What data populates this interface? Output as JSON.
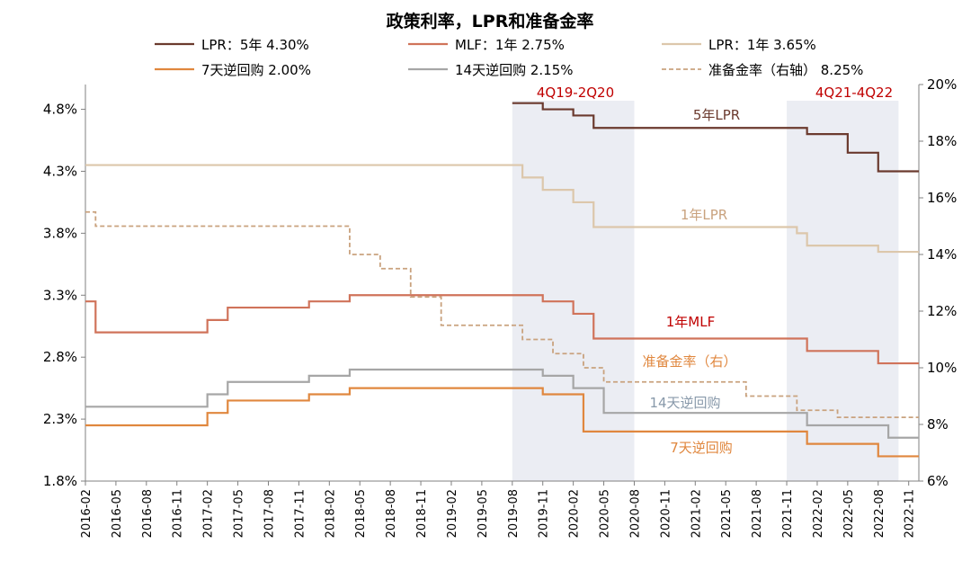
{
  "chart_data": {
    "type": "line",
    "title": "政策利率，LPR和准备金率",
    "left_axis": {
      "ylim": [
        1.8,
        5.0
      ],
      "ticks": [
        "4.8%",
        "4.3%",
        "3.8%",
        "3.3%",
        "2.8%",
        "2.3%",
        "1.8%"
      ],
      "tick_values": [
        4.8,
        4.3,
        3.8,
        3.3,
        2.8,
        2.3,
        1.8
      ]
    },
    "right_axis": {
      "ylim": [
        6,
        20
      ],
      "ticks": [
        "20%",
        "18%",
        "16%",
        "14%",
        "12%",
        "10%",
        "8%",
        "6%"
      ],
      "tick_values": [
        20,
        18,
        16,
        14,
        12,
        10,
        8,
        6
      ]
    },
    "x_tick_labels": [
      "2016-02",
      "2016-05",
      "2016-08",
      "2016-11",
      "2017-02",
      "2017-05",
      "2017-08",
      "2017-11",
      "2018-02",
      "2018-05",
      "2018-08",
      "2018-11",
      "2019-02",
      "2019-05",
      "2019-08",
      "2019-11",
      "2020-02",
      "2020-05",
      "2020-08",
      "2020-11",
      "2021-02",
      "2021-05",
      "2021-08",
      "2021-11",
      "2022-02",
      "2022-05",
      "2022-08",
      "2022-11"
    ],
    "grid": false,
    "legend_position": "top",
    "shaded_periods": [
      {
        "label": "4Q19-2Q20",
        "from": "2019-08",
        "to": "2020-08"
      },
      {
        "label": "4Q21-4Q22",
        "from": "2021-11",
        "to": "2022-10"
      }
    ],
    "series": [
      {
        "key": "lpr5y",
        "legend_name": "LPR：5年",
        "legend_value": "4.30%",
        "inline_label": "5年LPR",
        "color": "#6b3a2e",
        "axis": "left",
        "dashed": false,
        "points": [
          [
            "2019-08",
            4.85
          ],
          [
            "2019-11",
            4.8
          ],
          [
            "2020-02",
            4.75
          ],
          [
            "2020-04",
            4.65
          ],
          [
            "2021-12",
            4.65
          ],
          [
            "2022-01",
            4.6
          ],
          [
            "2022-05",
            4.45
          ],
          [
            "2022-08",
            4.3
          ],
          [
            "2022-12",
            4.3
          ]
        ]
      },
      {
        "key": "lpr1y",
        "legend_name": "LPR：1年",
        "legend_value": "3.65%",
        "inline_label": "1年LPR",
        "color": "#dcc7ab",
        "axis": "left",
        "dashed": false,
        "points": [
          [
            "2016-02",
            4.35
          ],
          [
            "2019-08",
            4.35
          ],
          [
            "2019-09",
            4.25
          ],
          [
            "2019-11",
            4.15
          ],
          [
            "2020-02",
            4.05
          ],
          [
            "2020-04",
            3.85
          ],
          [
            "2021-12",
            3.8
          ],
          [
            "2022-01",
            3.7
          ],
          [
            "2022-08",
            3.65
          ],
          [
            "2022-12",
            3.65
          ]
        ]
      },
      {
        "key": "mlf",
        "legend_name": "MLF：1年",
        "legend_value": "2.75%",
        "inline_label": "1年MLF",
        "color": "#d0735a",
        "axis": "left",
        "dashed": false,
        "points": [
          [
            "2016-02",
            3.25
          ],
          [
            "2016-03",
            3.0
          ],
          [
            "2017-02",
            3.1
          ],
          [
            "2017-04",
            3.2
          ],
          [
            "2017-12",
            3.25
          ],
          [
            "2018-04",
            3.3
          ],
          [
            "2019-11",
            3.25
          ],
          [
            "2020-02",
            3.15
          ],
          [
            "2020-04",
            2.95
          ],
          [
            "2022-01",
            2.85
          ],
          [
            "2022-08",
            2.75
          ],
          [
            "2022-12",
            2.75
          ]
        ]
      },
      {
        "key": "rr7d",
        "legend_name": "7天逆回购",
        "legend_value": "2.00%",
        "inline_label": "7天逆回购",
        "color": "#e0873e",
        "axis": "left",
        "dashed": false,
        "points": [
          [
            "2016-02",
            2.25
          ],
          [
            "2017-02",
            2.35
          ],
          [
            "2017-04",
            2.45
          ],
          [
            "2017-12",
            2.5
          ],
          [
            "2018-04",
            2.55
          ],
          [
            "2019-11",
            2.5
          ],
          [
            "2020-03",
            2.2
          ],
          [
            "2022-01",
            2.1
          ],
          [
            "2022-08",
            2.0
          ],
          [
            "2022-12",
            2.0
          ]
        ]
      },
      {
        "key": "rr14d",
        "legend_name": "14天逆回购",
        "legend_value": "2.15%",
        "inline_label": "14天逆回购",
        "color": "#a6a6a6",
        "axis": "left",
        "dashed": false,
        "points": [
          [
            "2016-02",
            2.4
          ],
          [
            "2017-02",
            2.5
          ],
          [
            "2017-04",
            2.6
          ],
          [
            "2017-12",
            2.65
          ],
          [
            "2018-04",
            2.7
          ],
          [
            "2019-11",
            2.65
          ],
          [
            "2020-02",
            2.55
          ],
          [
            "2020-05",
            2.35
          ],
          [
            "2022-01",
            2.25
          ],
          [
            "2022-09",
            2.15
          ],
          [
            "2022-12",
            2.15
          ]
        ]
      },
      {
        "key": "rrr",
        "legend_name": "准备金率（右轴）",
        "legend_value": "8.25%",
        "inline_label": "准备金率（右）",
        "color": "#c9a27e",
        "axis": "right",
        "dashed": true,
        "points": [
          [
            "2016-02",
            15.5
          ],
          [
            "2016-03",
            15.0
          ],
          [
            "2018-04",
            14.0
          ],
          [
            "2018-07",
            13.5
          ],
          [
            "2018-10",
            12.5
          ],
          [
            "2019-01",
            11.5
          ],
          [
            "2019-09",
            11.0
          ],
          [
            "2019-12",
            10.5
          ],
          [
            "2020-03",
            10.0
          ],
          [
            "2020-05",
            9.5
          ],
          [
            "2021-07",
            9.0
          ],
          [
            "2021-12",
            8.5
          ],
          [
            "2022-04",
            8.25
          ],
          [
            "2022-12",
            8.25
          ]
        ]
      }
    ]
  }
}
